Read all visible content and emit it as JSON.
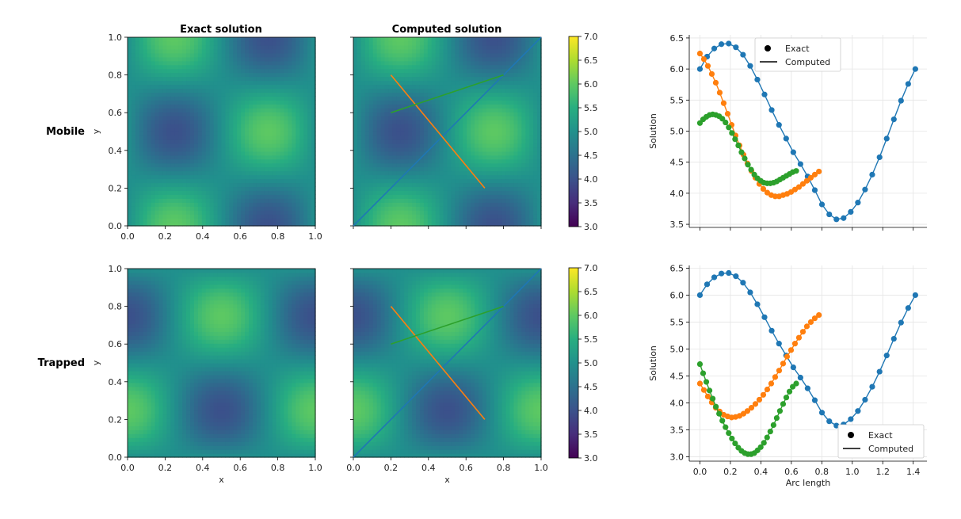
{
  "figure": {
    "col_titles": [
      "Exact solution",
      "Computed solution"
    ],
    "row_labels": [
      "Mobile",
      "Trapped"
    ]
  },
  "chart_data": [
    {
      "type": "heatmap",
      "panel": "mobile-exact",
      "title": "Exact solution",
      "xlabel": "",
      "ylabel": "y",
      "xlim": [
        0,
        1
      ],
      "ylim": [
        0,
        1
      ],
      "xticks": [
        "0.0",
        "0.2",
        "0.4",
        "0.6",
        "0.8",
        "1.0"
      ],
      "yticks": [
        "0.0",
        "0.2",
        "0.4",
        "0.6",
        "0.8",
        "1.0"
      ],
      "field": "5 + sin(2*pi*x)*cos(2*pi*y)",
      "colormap": "viridis",
      "vmin": 3.0,
      "vmax": 7.0
    },
    {
      "type": "heatmap",
      "panel": "mobile-computed",
      "title": "Computed solution",
      "xlim": [
        0,
        1
      ],
      "ylim": [
        0,
        1
      ],
      "field": "5 + sin(2*pi*x)*cos(2*pi*y)",
      "colormap": "viridis",
      "vmin": 3.0,
      "vmax": 7.0,
      "colorbar_ticks": [
        "3.0",
        "3.5",
        "4.0",
        "4.5",
        "5.0",
        "5.5",
        "6.0",
        "6.5",
        "7.0"
      ],
      "lines": [
        {
          "color": "#1f77b4",
          "from": [
            0,
            0
          ],
          "to": [
            1,
            1
          ]
        },
        {
          "color": "#ff7f0e",
          "from": [
            0.2,
            0.8
          ],
          "to": [
            0.7,
            0.2
          ]
        },
        {
          "color": "#2ca02c",
          "from": [
            0.2,
            0.6
          ],
          "to": [
            0.8,
            0.8
          ]
        }
      ]
    },
    {
      "type": "line",
      "panel": "mobile-profiles",
      "xlabel": "",
      "ylabel": "Solution",
      "xlim": [
        -0.07,
        1.49
      ],
      "ylim": [
        3.45,
        6.55
      ],
      "yticks": [
        "3.5",
        "4.0",
        "4.5",
        "5.0",
        "5.5",
        "6.0",
        "6.5"
      ],
      "legend": {
        "position": "top-center",
        "entries": [
          "Exact",
          "Computed"
        ]
      },
      "series": [
        {
          "name": "diagonal",
          "color": "#1f77b4",
          "x": [
            0.0,
            0.047,
            0.094,
            0.141,
            0.189,
            0.236,
            0.283,
            0.33,
            0.377,
            0.424,
            0.471,
            0.519,
            0.566,
            0.613,
            0.66,
            0.707,
            0.754,
            0.801,
            0.849,
            0.896,
            0.943,
            0.99,
            1.037,
            1.084,
            1.131,
            1.179,
            1.226,
            1.273,
            1.32,
            1.367,
            1.414
          ],
          "values": [
            6.0,
            6.2,
            6.33,
            6.4,
            6.41,
            6.35,
            6.23,
            6.05,
            5.83,
            5.59,
            5.34,
            5.1,
            4.88,
            4.66,
            4.47,
            4.27,
            4.05,
            3.82,
            3.66,
            3.58,
            3.6,
            3.7,
            3.85,
            4.06,
            4.3,
            4.58,
            4.88,
            5.19,
            5.49,
            5.76,
            6.0
          ]
        },
        {
          "name": "orange segment",
          "color": "#ff7f0e",
          "x": [
            0.0,
            0.026,
            0.052,
            0.078,
            0.104,
            0.13,
            0.156,
            0.182,
            0.208,
            0.234,
            0.26,
            0.286,
            0.312,
            0.338,
            0.364,
            0.39,
            0.416,
            0.442,
            0.468,
            0.494,
            0.52,
            0.546,
            0.572,
            0.598,
            0.624,
            0.65,
            0.676,
            0.702,
            0.728,
            0.754,
            0.781
          ],
          "values": [
            6.25,
            6.16,
            6.05,
            5.92,
            5.78,
            5.62,
            5.45,
            5.28,
            5.1,
            4.93,
            4.77,
            4.62,
            4.48,
            4.36,
            4.25,
            4.15,
            4.07,
            4.01,
            3.97,
            3.95,
            3.95,
            3.97,
            3.99,
            4.02,
            4.06,
            4.1,
            4.15,
            4.2,
            4.25,
            4.3,
            4.35
          ]
        },
        {
          "name": "green segment",
          "color": "#2ca02c",
          "x": [
            0.0,
            0.021,
            0.042,
            0.063,
            0.084,
            0.105,
            0.126,
            0.147,
            0.168,
            0.189,
            0.21,
            0.231,
            0.252,
            0.273,
            0.294,
            0.315,
            0.336,
            0.357,
            0.378,
            0.399,
            0.42,
            0.441,
            0.462,
            0.483,
            0.504,
            0.525,
            0.546,
            0.567,
            0.588,
            0.609,
            0.632
          ],
          "values": [
            5.13,
            5.19,
            5.23,
            5.26,
            5.27,
            5.26,
            5.24,
            5.2,
            5.14,
            5.06,
            4.97,
            4.87,
            4.77,
            4.66,
            4.56,
            4.46,
            4.38,
            4.3,
            4.24,
            4.2,
            4.17,
            4.16,
            4.16,
            4.17,
            4.19,
            4.22,
            4.25,
            4.28,
            4.31,
            4.34,
            4.36
          ]
        }
      ]
    },
    {
      "type": "heatmap",
      "panel": "trapped-exact",
      "xlabel": "x",
      "ylabel": "y",
      "xlim": [
        0,
        1
      ],
      "ylim": [
        0,
        1
      ],
      "xticks": [
        "0.0",
        "0.2",
        "0.4",
        "0.6",
        "0.8",
        "1.0"
      ],
      "yticks": [
        "0.0",
        "0.2",
        "0.4",
        "0.6",
        "0.8",
        "1.0"
      ],
      "field": "5 + cos(2*pi*x)*sin(2*pi*y)",
      "colormap": "viridis",
      "vmin": 3.0,
      "vmax": 7.0
    },
    {
      "type": "heatmap",
      "panel": "trapped-computed",
      "xlabel": "x",
      "xlim": [
        0,
        1
      ],
      "ylim": [
        0,
        1
      ],
      "xticks": [
        "0.0",
        "0.2",
        "0.4",
        "0.6",
        "0.8",
        "1.0"
      ],
      "field": "5 + cos(2*pi*x)*sin(2*pi*y)",
      "colormap": "viridis",
      "vmin": 3.0,
      "vmax": 7.0,
      "colorbar_ticks": [
        "3.0",
        "3.5",
        "4.0",
        "4.5",
        "5.0",
        "5.5",
        "6.0",
        "6.5",
        "7.0"
      ],
      "lines": [
        {
          "color": "#1f77b4",
          "from": [
            0,
            0
          ],
          "to": [
            1,
            1
          ]
        },
        {
          "color": "#ff7f0e",
          "from": [
            0.2,
            0.8
          ],
          "to": [
            0.7,
            0.2
          ]
        },
        {
          "color": "#2ca02c",
          "from": [
            0.2,
            0.6
          ],
          "to": [
            0.8,
            0.8
          ]
        }
      ]
    },
    {
      "type": "line",
      "panel": "trapped-profiles",
      "xlabel": "Arc length",
      "ylabel": "Solution",
      "xlim": [
        -0.07,
        1.49
      ],
      "ylim": [
        2.92,
        6.55
      ],
      "xticks": [
        "0.0",
        "0.2",
        "0.4",
        "0.6",
        "0.8",
        "1.0",
        "1.2",
        "1.4"
      ],
      "yticks": [
        "3.0",
        "3.5",
        "4.0",
        "4.5",
        "5.0",
        "5.5",
        "6.0",
        "6.5"
      ],
      "legend": {
        "position": "bottom-right",
        "entries": [
          "Exact",
          "Computed"
        ]
      },
      "series": [
        {
          "name": "diagonal",
          "color": "#1f77b4",
          "x": [
            0.0,
            0.047,
            0.094,
            0.141,
            0.189,
            0.236,
            0.283,
            0.33,
            0.377,
            0.424,
            0.471,
            0.519,
            0.566,
            0.613,
            0.66,
            0.707,
            0.754,
            0.801,
            0.849,
            0.896,
            0.943,
            0.99,
            1.037,
            1.084,
            1.131,
            1.179,
            1.226,
            1.273,
            1.32,
            1.367,
            1.414
          ],
          "values": [
            6.0,
            6.2,
            6.33,
            6.4,
            6.41,
            6.35,
            6.23,
            6.05,
            5.83,
            5.59,
            5.34,
            5.1,
            4.88,
            4.66,
            4.47,
            4.27,
            4.05,
            3.82,
            3.66,
            3.58,
            3.6,
            3.7,
            3.85,
            4.06,
            4.3,
            4.58,
            4.88,
            5.19,
            5.49,
            5.76,
            6.0
          ]
        },
        {
          "name": "orange segment",
          "color": "#ff7f0e",
          "x": [
            0.0,
            0.026,
            0.052,
            0.078,
            0.104,
            0.13,
            0.156,
            0.182,
            0.208,
            0.234,
            0.26,
            0.286,
            0.312,
            0.338,
            0.364,
            0.39,
            0.416,
            0.442,
            0.468,
            0.494,
            0.52,
            0.546,
            0.572,
            0.598,
            0.624,
            0.65,
            0.676,
            0.702,
            0.728,
            0.754,
            0.781
          ],
          "values": [
            4.36,
            4.24,
            4.12,
            4.01,
            3.91,
            3.84,
            3.78,
            3.75,
            3.73,
            3.74,
            3.76,
            3.8,
            3.85,
            3.91,
            3.98,
            4.06,
            4.15,
            4.25,
            4.36,
            4.48,
            4.6,
            4.73,
            4.86,
            4.98,
            5.1,
            5.21,
            5.32,
            5.42,
            5.5,
            5.57,
            5.63
          ]
        },
        {
          "name": "green segment",
          "color": "#2ca02c",
          "x": [
            0.0,
            0.021,
            0.042,
            0.063,
            0.084,
            0.105,
            0.126,
            0.147,
            0.168,
            0.189,
            0.21,
            0.231,
            0.252,
            0.273,
            0.294,
            0.315,
            0.336,
            0.357,
            0.378,
            0.399,
            0.42,
            0.441,
            0.462,
            0.483,
            0.504,
            0.525,
            0.546,
            0.567,
            0.588,
            0.609,
            0.632
          ],
          "values": [
            4.72,
            4.55,
            4.39,
            4.23,
            4.08,
            3.93,
            3.8,
            3.67,
            3.55,
            3.44,
            3.34,
            3.25,
            3.17,
            3.11,
            3.07,
            3.05,
            3.05,
            3.07,
            3.12,
            3.18,
            3.26,
            3.36,
            3.47,
            3.59,
            3.72,
            3.85,
            3.98,
            4.1,
            4.21,
            4.3,
            4.36
          ]
        }
      ]
    }
  ]
}
